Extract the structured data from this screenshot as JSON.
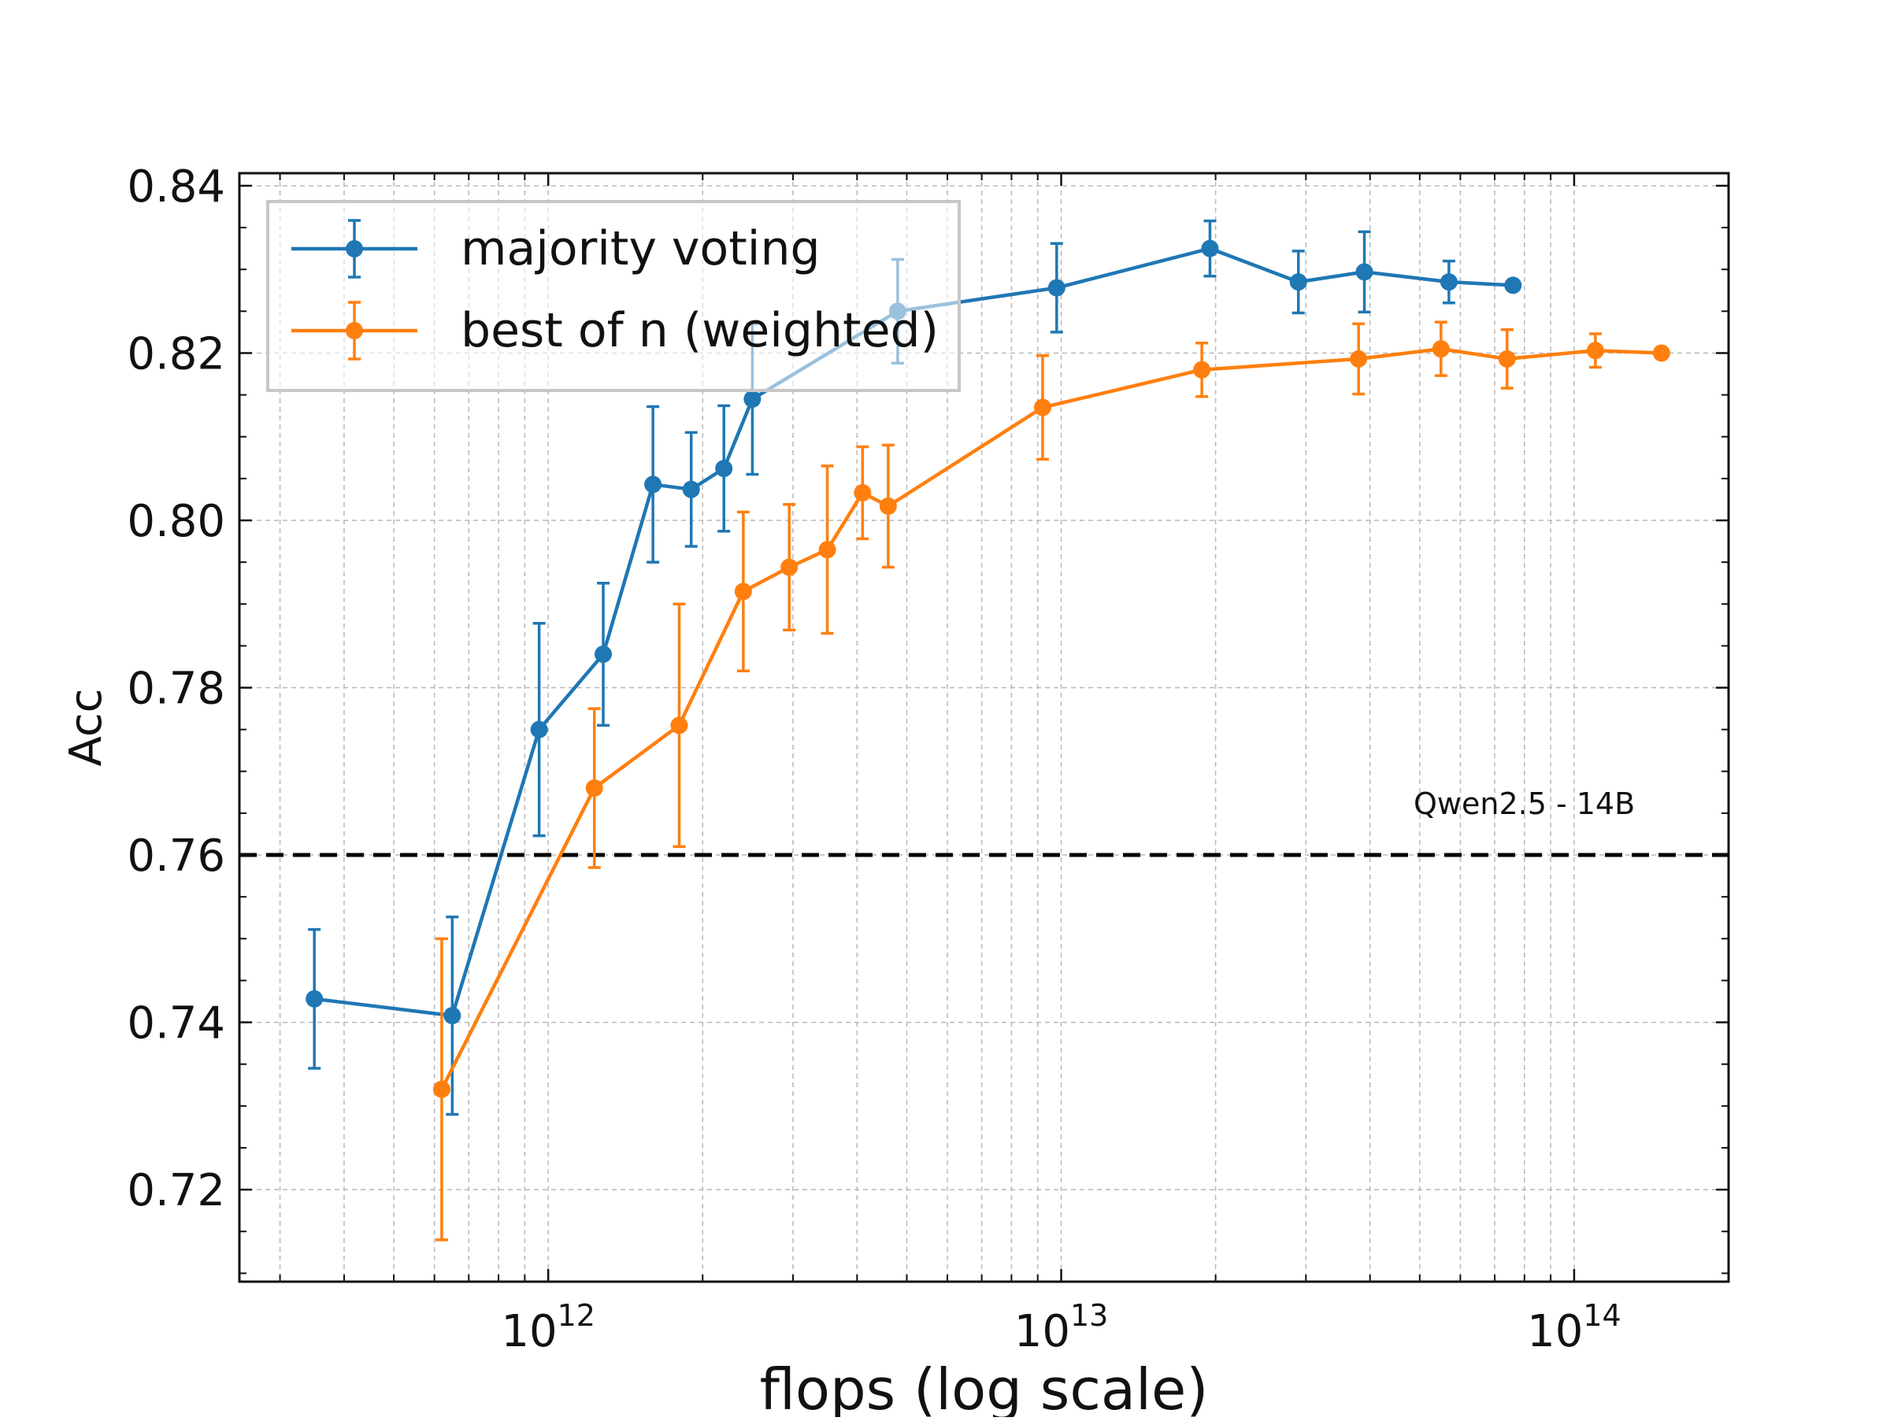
{
  "chart_data": {
    "type": "line",
    "xlabel": "flops (log scale)",
    "ylabel": "Acc",
    "xscale": "log",
    "xlim": [
      250000000000.0,
      200000000000000.0
    ],
    "ylim": [
      0.709,
      0.8415
    ],
    "grid": true,
    "legend_position": "top-left",
    "x_ticks": [
      {
        "value": 1000000000000.0,
        "base": "10",
        "exp": "12"
      },
      {
        "value": 10000000000000.0,
        "base": "10",
        "exp": "13"
      },
      {
        "value": 100000000000000.0,
        "base": "10",
        "exp": "14"
      }
    ],
    "y_ticks": [
      {
        "value": 0.72,
        "label": "0.72"
      },
      {
        "value": 0.74,
        "label": "0.74"
      },
      {
        "value": 0.76,
        "label": "0.76"
      },
      {
        "value": 0.78,
        "label": "0.78"
      },
      {
        "value": 0.8,
        "label": "0.80"
      },
      {
        "value": 0.82,
        "label": "0.82"
      },
      {
        "value": 0.84,
        "label": "0.84"
      }
    ],
    "series": [
      {
        "name": "majority voting",
        "color": "#1f77b4",
        "points": [
          {
            "x": 350000000000.0,
            "y": 0.7428,
            "err": 0.0083
          },
          {
            "x": 650000000000.0,
            "y": 0.7408,
            "err": 0.0118
          },
          {
            "x": 960000000000.0,
            "y": 0.775,
            "err": 0.0127
          },
          {
            "x": 1280000000000.0,
            "y": 0.784,
            "err": 0.0085
          },
          {
            "x": 1600000000000.0,
            "y": 0.8043,
            "err": 0.0093
          },
          {
            "x": 1900000000000.0,
            "y": 0.8037,
            "err": 0.0068
          },
          {
            "x": 2200000000000.0,
            "y": 0.8062,
            "err": 0.0075
          },
          {
            "x": 2500000000000.0,
            "y": 0.8145,
            "err": 0.009
          },
          {
            "x": 4800000000000.0,
            "y": 0.825,
            "err": 0.0062
          },
          {
            "x": 9800000000000.0,
            "y": 0.8278,
            "err": 0.0053
          },
          {
            "x": 19500000000000.0,
            "y": 0.8325,
            "err": 0.0033
          },
          {
            "x": 29000000000000.0,
            "y": 0.8285,
            "err": 0.0037
          },
          {
            "x": 39000000000000.0,
            "y": 0.8297,
            "err": 0.0048
          },
          {
            "x": 57000000000000.0,
            "y": 0.8285,
            "err": 0.0025
          },
          {
            "x": 76000000000000.0,
            "y": 0.8281,
            "err": null
          }
        ]
      },
      {
        "name": "best of n (weighted)",
        "color": "#ff7f0e",
        "points": [
          {
            "x": 620000000000.0,
            "y": 0.732,
            "err": 0.018
          },
          {
            "x": 1230000000000.0,
            "y": 0.768,
            "err": 0.0095
          },
          {
            "x": 1800000000000.0,
            "y": 0.7755,
            "err": 0.0145
          },
          {
            "x": 2400000000000.0,
            "y": 0.7915,
            "err": 0.0095
          },
          {
            "x": 2950000000000.0,
            "y": 0.7944,
            "err": 0.0075
          },
          {
            "x": 3500000000000.0,
            "y": 0.7965,
            "err": 0.01
          },
          {
            "x": 4100000000000.0,
            "y": 0.8033,
            "err": 0.0055
          },
          {
            "x": 4600000000000.0,
            "y": 0.8017,
            "err": 0.0073
          },
          {
            "x": 9200000000000.0,
            "y": 0.8135,
            "err": 0.0062
          },
          {
            "x": 18800000000000.0,
            "y": 0.818,
            "err": 0.0032
          },
          {
            "x": 38000000000000.0,
            "y": 0.8193,
            "err": 0.0042
          },
          {
            "x": 55000000000000.0,
            "y": 0.8205,
            "err": 0.0032
          },
          {
            "x": 74000000000000.0,
            "y": 0.8193,
            "err": 0.0035
          },
          {
            "x": 110000000000000.0,
            "y": 0.8203,
            "err": 0.002
          },
          {
            "x": 148000000000000.0,
            "y": 0.82,
            "err": null
          }
        ]
      }
    ],
    "reference_line": {
      "y": 0.76,
      "label": "Qwen2.5 - 14B",
      "style": "dashed",
      "color": "#000000"
    }
  }
}
